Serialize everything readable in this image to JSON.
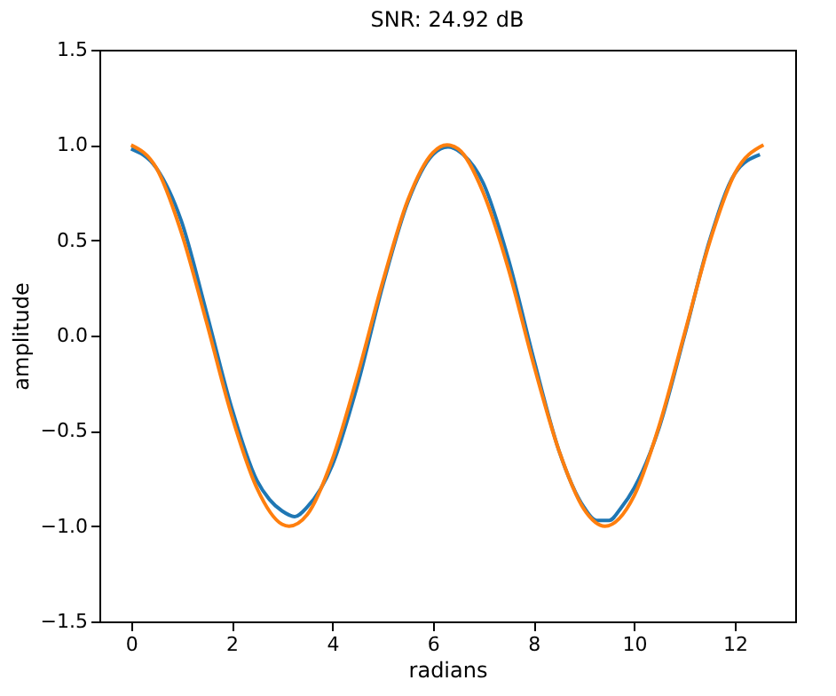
{
  "chart_data": {
    "type": "line",
    "title": "SNR: 24.92 dB",
    "xlabel": "radians",
    "ylabel": "amplitude",
    "xlim": [
      -0.63,
      13.2
    ],
    "xticks": [
      0,
      2,
      4,
      6,
      8,
      10,
      12
    ],
    "ylim": [
      -1.5,
      1.5
    ],
    "yticks": [
      -1.5,
      {
        "value": -1,
        "label": "−1.0"
      },
      -0.5,
      {
        "value": 0,
        "label": "0.0"
      },
      0.5,
      {
        "value": 1,
        "label": "1.0"
      },
      1.5
    ],
    "grid": false,
    "marker": "none",
    "line_style": "solid",
    "series": [
      {
        "color": "#1f77b4",
        "x": [
          0,
          0.5,
          1,
          1.5,
          2,
          2.5,
          2.75,
          3,
          3.25,
          3.5,
          4,
          4.5,
          5,
          5.5,
          6,
          6.3,
          6.6,
          7,
          7.5,
          8,
          8.5,
          9,
          9.25,
          9.5,
          9.75,
          10,
          10.5,
          11,
          11.5,
          12,
          12.5
        ],
        "values": [
          0.98,
          0.88,
          0.6,
          0.12,
          -0.38,
          -0.76,
          -0.86,
          -0.92,
          -0.95,
          -0.9,
          -0.68,
          -0.26,
          0.26,
          0.7,
          0.95,
          0.99,
          0.95,
          0.8,
          0.4,
          -0.12,
          -0.6,
          -0.9,
          -0.97,
          -0.97,
          -0.9,
          -0.8,
          -0.48,
          0.0,
          0.5,
          0.85,
          0.95
        ]
      },
      {
        "color": "#ff7f0e",
        "x": [
          0,
          0.5,
          1,
          1.5,
          2,
          2.5,
          3,
          3.14,
          3.5,
          4,
          4.5,
          5,
          5.5,
          6,
          6.28,
          6.5,
          7,
          7.5,
          8,
          8.5,
          9,
          9.42,
          10,
          10.5,
          11,
          11.5,
          12,
          12.57
        ],
        "values": [
          1.0,
          0.88,
          0.54,
          0.07,
          -0.42,
          -0.8,
          -0.99,
          -1.0,
          -0.94,
          -0.65,
          -0.21,
          0.28,
          0.71,
          0.96,
          1.0,
          0.98,
          0.75,
          0.35,
          -0.15,
          -0.6,
          -0.91,
          -1.0,
          -0.84,
          -0.47,
          0.01,
          0.49,
          0.85,
          1.0
        ]
      }
    ]
  }
}
